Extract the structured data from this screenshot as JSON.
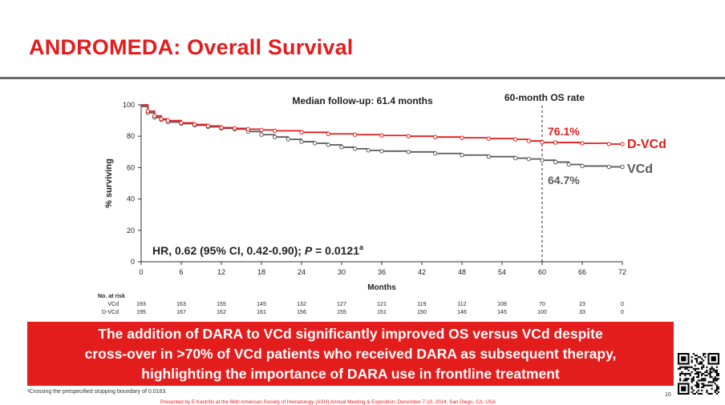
{
  "slide": {
    "title": "ANDROMEDA: Overall Survival",
    "banner_lines": [
      "The addition of DARA to VCd significantly improved OS versus VCd despite",
      "cross-over in >70% of VCd patients who received DARA as subsequent therapy,",
      "highlighting the importance of DARA use in frontline treatment"
    ],
    "footnote": "ᵃCrossing the prespecified stopping boundary of 0.0163.",
    "presented_by": "Presented by E Kastritis at the 66th American Society of Hematology (ASH) Annual Meeting & Exposition; December 7-10, 2024; San Diego, CA, USA",
    "page_number": "10"
  },
  "colors": {
    "d_vcd": "#e31c1c",
    "vcd": "#5a5a5a",
    "title": "#e31c1c",
    "banner": "#e31c1c"
  },
  "chart_data": {
    "type": "line",
    "xlabel": "Months",
    "ylabel": "% surviving",
    "xlim": [
      0,
      72
    ],
    "ylim": [
      0,
      100
    ],
    "x_ticks": [
      0,
      6,
      12,
      18,
      24,
      30,
      36,
      42,
      48,
      54,
      60,
      66,
      72
    ],
    "y_ticks": [
      0,
      20,
      40,
      60,
      80,
      100
    ],
    "annotations": {
      "median_follow_up": "Median follow-up: 61.4 months",
      "os_rate_label": "60-month OS rate",
      "os_rate_month": 60,
      "d_vcd_rate": "76.1%",
      "vcd_rate": "64.7%",
      "hr_prefix": "HR, 0.62 (95% CI, 0.42-0.90); ",
      "p_label": "P",
      "p_value": " = 0.0121",
      "p_superscript": "a"
    },
    "series": [
      {
        "name": "D-VCd",
        "x": [
          0,
          1,
          2,
          3,
          4,
          6,
          8,
          10,
          12,
          14,
          16,
          18,
          20,
          24,
          28,
          32,
          36,
          40,
          44,
          48,
          52,
          56,
          58,
          60,
          62,
          66,
          70,
          72
        ],
        "y": [
          100,
          96,
          93,
          91,
          90,
          88.5,
          87.5,
          86.5,
          85.5,
          85,
          84.5,
          84,
          83.5,
          82.5,
          81.5,
          81,
          80.5,
          80,
          79.5,
          79,
          78.5,
          78,
          77,
          76.1,
          76,
          75.5,
          75,
          75
        ]
      },
      {
        "name": "VCd",
        "x": [
          0,
          1,
          2,
          3,
          4,
          6,
          8,
          10,
          12,
          14,
          16,
          18,
          20,
          22,
          24,
          26,
          28,
          30,
          32,
          34,
          36,
          40,
          44,
          48,
          52,
          56,
          58,
          60,
          62,
          64,
          66,
          70,
          72
        ],
        "y": [
          99,
          95,
          92,
          90.5,
          89,
          88,
          87,
          86,
          85,
          84.5,
          83,
          81,
          79.5,
          78,
          76.5,
          75.5,
          74.5,
          73,
          72,
          71,
          70.5,
          70,
          69,
          68,
          67,
          66,
          65.5,
          64.7,
          63.5,
          62,
          61,
          60.5,
          60.5
        ]
      }
    ],
    "risk_table": {
      "title": "No. at risk",
      "x": [
        0,
        6,
        12,
        18,
        24,
        30,
        36,
        42,
        48,
        54,
        60,
        66,
        72
      ],
      "rows": [
        {
          "name": "VCd",
          "values": [
            193,
            163,
            155,
            145,
            132,
            127,
            121,
            119,
            112,
            108,
            70,
            23,
            0
          ]
        },
        {
          "name": "D-VCd",
          "values": [
            195,
            167,
            162,
            161,
            156,
            155,
            151,
            150,
            146,
            145,
            100,
            33,
            0
          ]
        }
      ]
    }
  }
}
